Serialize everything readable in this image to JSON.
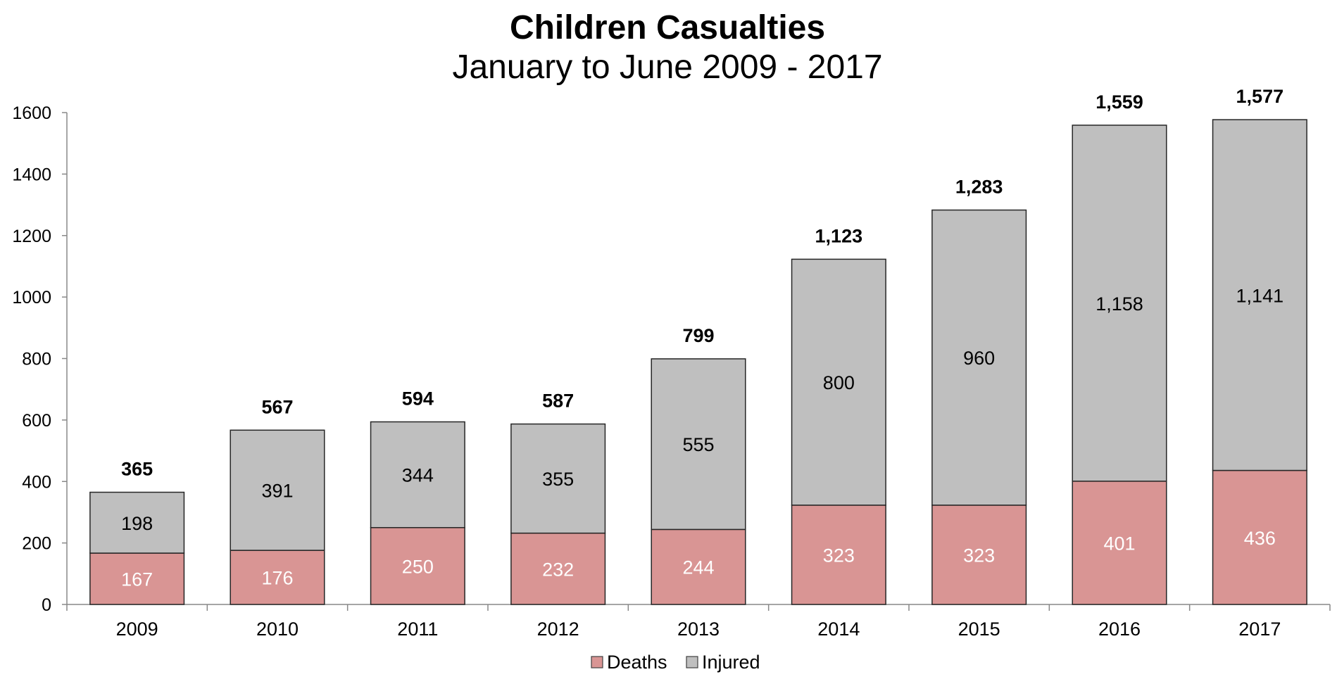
{
  "chart_data": {
    "type": "bar",
    "stacked": true,
    "title": "Children Casualties",
    "subtitle": "January to June 2009 - 2017",
    "xlabel": "",
    "ylabel": "",
    "categories": [
      "2009",
      "2010",
      "2011",
      "2012",
      "2013",
      "2014",
      "2015",
      "2016",
      "2017"
    ],
    "series": [
      {
        "name": "Deaths",
        "color": "#d99594",
        "values": [
          167,
          176,
          250,
          232,
          244,
          323,
          323,
          401,
          436
        ],
        "labels": [
          "167",
          "176",
          "250",
          "232",
          "244",
          "323",
          "323",
          "401",
          "436"
        ]
      },
      {
        "name": "Injured",
        "color": "#bfbfbf",
        "values": [
          198,
          391,
          344,
          355,
          555,
          800,
          960,
          1158,
          1141
        ],
        "labels": [
          "198",
          "391",
          "344",
          "355",
          "555",
          "800",
          "960",
          "1,158",
          "1,141"
        ]
      }
    ],
    "totals": [
      365,
      567,
      594,
      587,
      799,
      1123,
      1283,
      1559,
      1577
    ],
    "total_labels": [
      "365",
      "567",
      "594",
      "587",
      "799",
      "1,123",
      "1,283",
      "1,559",
      "1,577"
    ],
    "ylim": [
      0,
      1600
    ],
    "yticks": [
      0,
      200,
      400,
      600,
      800,
      1000,
      1200,
      1400,
      1600
    ],
    "grid": false,
    "legend": {
      "position": "bottom",
      "entries": [
        "Deaths",
        "Injured"
      ]
    }
  }
}
